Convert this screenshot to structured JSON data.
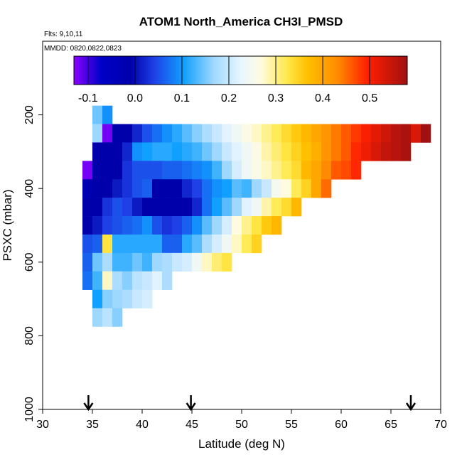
{
  "chart_data": {
    "type": "heatmap",
    "title": "ATOM1 North_America CH3I_PMSD",
    "subtitle_flights": "Flts: 9,10,11",
    "subtitle_dates": "MMDD: 0820,0822,0823",
    "xlabel": "Latitude (deg N)",
    "ylabel": "PSXC (mbar)",
    "xlim": [
      30,
      70
    ],
    "ylim": [
      1000,
      0
    ],
    "xticks": [
      30,
      35,
      40,
      45,
      50,
      55,
      60,
      65,
      70
    ],
    "yticks": [
      200,
      400,
      600,
      800,
      1000
    ],
    "colorbar": {
      "range": [
        -0.13,
        0.58
      ],
      "ticks": [
        -0.1,
        0.0,
        0.1,
        0.2,
        0.3,
        0.4,
        0.5
      ],
      "tick_labels": [
        "-0.1",
        "0.0",
        "0.1",
        "0.2",
        "0.3",
        "0.4",
        "0.5"
      ]
    },
    "cell_size": {
      "lat_deg": 1,
      "pressure_mbar": 50
    },
    "rows": [
      {
        "p": 200,
        "lat_start": 35,
        "values": [
          0.15,
          0.1
        ]
      },
      {
        "p": 250,
        "lat_start": 35,
        "values": [
          0.17,
          -0.12,
          0.0,
          0.0,
          0.03,
          0.06,
          0.08,
          0.1,
          0.12,
          0.14,
          0.16,
          0.18,
          0.2,
          0.22,
          0.24,
          0.26,
          0.28,
          0.3,
          0.32,
          0.34,
          0.36,
          0.38,
          0.4,
          0.42,
          0.44,
          0.46,
          0.48,
          0.5,
          0.52,
          0.54,
          0.56,
          0.57,
          0.53,
          0.58
        ]
      },
      {
        "p": 300,
        "lat_start": 35,
        "values": [
          0.0,
          0.0,
          0.0,
          0.03,
          0.1,
          0.11,
          0.12,
          0.12,
          0.11,
          0.12,
          0.13,
          0.15,
          0.17,
          0.2,
          0.22,
          0.24,
          0.26,
          0.29,
          0.31,
          0.33,
          0.35,
          0.37,
          0.39,
          0.42,
          0.44,
          0.46,
          0.49,
          0.51,
          0.53,
          0.55,
          0.56,
          0.57
        ]
      },
      {
        "p": 350,
        "lat_start": 34,
        "values": [
          -0.12,
          0.0,
          0.0,
          0.0,
          0.04,
          0.06,
          0.06,
          0.06,
          0.07,
          0.07,
          0.08,
          0.09,
          0.1,
          0.13,
          0.17,
          0.21,
          0.24,
          0.26,
          0.28,
          0.3,
          0.32,
          0.34,
          0.38,
          0.4,
          0.43,
          0.46,
          0.47,
          0.49
        ]
      },
      {
        "p": 400,
        "lat_start": 34,
        "values": [
          -0.02,
          0.0,
          0.0,
          0.02,
          0.04,
          0.06,
          0.07,
          0.0,
          0.0,
          0.0,
          0.03,
          0.05,
          0.08,
          0.1,
          0.11,
          0.14,
          0.13,
          0.17,
          0.2,
          0.25,
          0.27,
          0.32,
          0.35,
          0.4,
          0.45
        ]
      },
      {
        "p": 450,
        "lat_start": 34,
        "values": [
          0.0,
          0.0,
          0.04,
          0.06,
          0.05,
          0.02,
          0.0,
          0.0,
          0.0,
          0.0,
          0.0,
          0.03,
          0.08,
          0.11,
          0.14,
          0.17,
          0.22,
          0.24,
          0.29,
          0.32,
          0.34,
          0.38
        ]
      },
      {
        "p": 500,
        "lat_start": 34,
        "values": [
          0.0,
          0.02,
          0.05,
          0.06,
          0.07,
          0.08,
          0.1,
          0.06,
          0.04,
          0.05,
          0.07,
          0.1,
          0.14,
          0.17,
          0.21,
          0.27,
          0.3,
          0.33,
          0.36,
          0.38
        ]
      },
      {
        "p": 550,
        "lat_start": 34,
        "values": [
          0.06,
          0.07,
          0.33,
          0.12,
          0.12,
          0.12,
          0.12,
          0.12,
          0.07,
          0.07,
          0.12,
          0.14,
          0.18,
          0.21,
          0.24,
          0.28,
          0.32,
          0.35
        ]
      },
      {
        "p": 600,
        "lat_start": 34,
        "values": [
          0.07,
          0.15,
          0.18,
          0.13,
          0.13,
          0.15,
          0.13,
          0.17,
          0.18,
          0.2,
          0.21,
          0.24,
          0.28,
          0.31,
          0.33
        ]
      },
      {
        "p": 650,
        "lat_start": 34,
        "values": [
          0.08,
          0.13,
          0.28,
          0.18,
          0.16,
          0.19,
          0.2,
          0.22,
          0.18
        ]
      },
      {
        "p": 700,
        "lat_start": 35,
        "values": [
          0.11,
          0.16,
          0.17,
          0.18,
          0.2,
          0.21
        ]
      },
      {
        "p": 750,
        "lat_start": 35,
        "values": [
          0.17,
          0.19,
          0.16
        ]
      }
    ],
    "markers_lat": [
      34.6,
      44.9,
      67.0
    ]
  }
}
